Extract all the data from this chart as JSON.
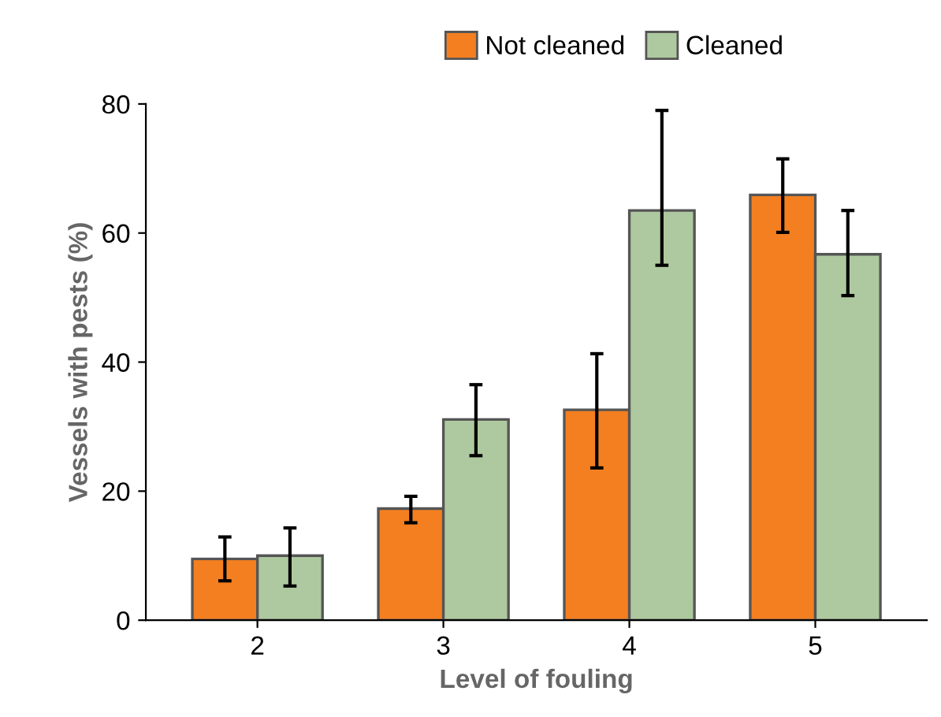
{
  "chart_data": {
    "type": "bar",
    "xlabel": "Level of fouling",
    "ylabel": "Vessels with pests (%)",
    "categories": [
      "2",
      "3",
      "4",
      "5"
    ],
    "series": [
      {
        "name": "Not cleaned",
        "color": "#f47f20",
        "values": [
          9.5,
          17.3,
          32.6,
          65.9
        ],
        "errors": [
          [
            6.1,
            12.9
          ],
          [
            15.1,
            19.2
          ],
          [
            23.6,
            41.3
          ],
          [
            60.1,
            71.5
          ]
        ]
      },
      {
        "name": "Cleaned",
        "color": "#aec99f",
        "values": [
          10.0,
          31.1,
          63.5,
          56.7
        ],
        "errors": [
          [
            5.3,
            14.3
          ],
          [
            25.5,
            36.5
          ],
          [
            55.0,
            79.0
          ],
          [
            50.3,
            63.5
          ]
        ]
      }
    ],
    "ylim": [
      0,
      80
    ],
    "yticks": [
      0,
      20,
      40,
      60,
      80
    ],
    "grid": false,
    "legend": "top"
  }
}
